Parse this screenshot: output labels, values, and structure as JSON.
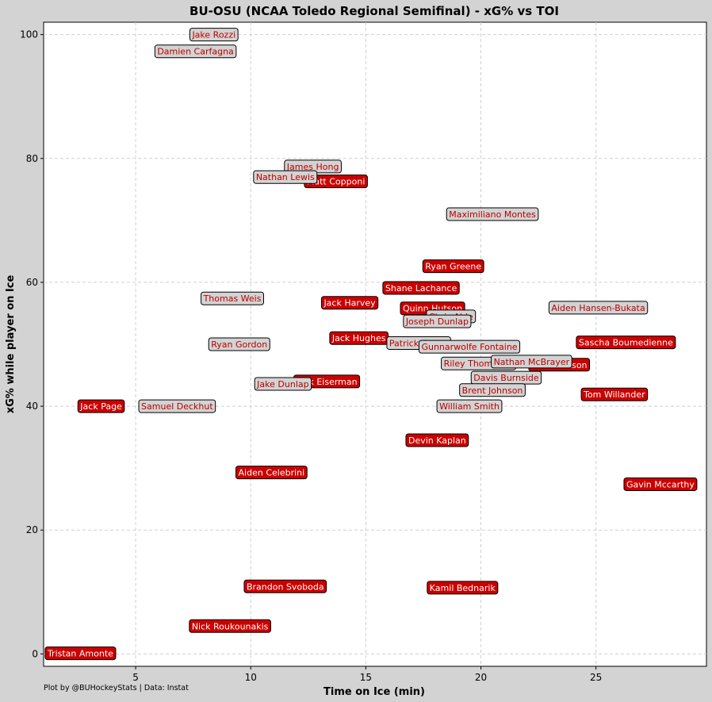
{
  "chart_data": {
    "type": "scatter",
    "title": "BU-OSU (NCAA Toledo Regional Semifinal) - xG% vs TOI",
    "xlabel": "Time on Ice (min)",
    "ylabel": "xG% while player on Ice",
    "xlim": [
      1.0,
      29.8
    ],
    "ylim": [
      -2.0,
      102.0
    ],
    "xticks": [
      5,
      10,
      15,
      20,
      25
    ],
    "yticks": [
      0,
      20,
      40,
      60,
      80,
      100
    ],
    "grid": true,
    "credit": "Plot by @BUHockeyStats | Data: Instat",
    "colors": {
      "BU": {
        "fill": "#cc0000",
        "text": "#ffffff"
      },
      "OSU": {
        "fill": "#d3d3d3",
        "text": "#bb0000"
      }
    },
    "points": [
      {
        "name": "Jake Rozzi",
        "team": "OSU",
        "x": 8.4,
        "y": 100.0
      },
      {
        "name": "Damien Carfagna",
        "team": "OSU",
        "x": 7.6,
        "y": 97.3
      },
      {
        "name": "James Hong",
        "team": "OSU",
        "x": 12.7,
        "y": 78.7
      },
      {
        "name": "Matt Copponi",
        "team": "BU",
        "x": 13.7,
        "y": 76.3
      },
      {
        "name": "Nathan Lewis",
        "team": "OSU",
        "x": 11.5,
        "y": 77.0
      },
      {
        "name": "Maximiliano Montes",
        "team": "OSU",
        "x": 20.5,
        "y": 71.0
      },
      {
        "name": "Ryan Greene",
        "team": "BU",
        "x": 18.8,
        "y": 62.6
      },
      {
        "name": "Shane Lachance",
        "team": "BU",
        "x": 17.4,
        "y": 59.1
      },
      {
        "name": "Thomas Weis",
        "team": "OSU",
        "x": 9.2,
        "y": 57.4
      },
      {
        "name": "Jack Harvey",
        "team": "BU",
        "x": 14.3,
        "y": 56.7
      },
      {
        "name": "Quinn Hutson",
        "team": "BU",
        "x": 17.9,
        "y": 55.8
      },
      {
        "name": "Aiden Hansen-Bukata",
        "team": "OSU",
        "x": 25.1,
        "y": 55.9
      },
      {
        "name": "Chris Able",
        "team": "OSU",
        "x": 18.7,
        "y": 54.5
      },
      {
        "name": "Joseph Dunlap",
        "team": "OSU",
        "x": 18.1,
        "y": 53.7
      },
      {
        "name": "Jack Hughes",
        "team": "BU",
        "x": 14.7,
        "y": 51.0
      },
      {
        "name": "Patrick Guzzo",
        "team": "OSU",
        "x": 17.3,
        "y": 50.2
      },
      {
        "name": "Gunnarwolfe Fontaine",
        "team": "OSU",
        "x": 19.5,
        "y": 49.6
      },
      {
        "name": "Sascha Boumedienne",
        "team": "BU",
        "x": 26.3,
        "y": 50.3
      },
      {
        "name": "Ryan Gordon",
        "team": "OSU",
        "x": 9.5,
        "y": 50.0
      },
      {
        "name": "Riley Thompson",
        "team": "OSU",
        "x": 19.9,
        "y": 46.9
      },
      {
        "name": "Cade Hutson",
        "team": "BU",
        "x": 23.4,
        "y": 46.7
      },
      {
        "name": "Nathan McBrayer",
        "team": "OSU",
        "x": 22.2,
        "y": 47.2
      },
      {
        "name": "Davis Burnside",
        "team": "OSU",
        "x": 21.1,
        "y": 44.6
      },
      {
        "name": "Brent Johnson",
        "team": "OSU",
        "x": 20.5,
        "y": 42.6
      },
      {
        "name": "Jack Eiserman",
        "team": "BU",
        "x": 13.3,
        "y": 44.0
      },
      {
        "name": "Jake Dunlap",
        "team": "OSU",
        "x": 11.4,
        "y": 43.6
      },
      {
        "name": "Tom Willander",
        "team": "BU",
        "x": 25.8,
        "y": 41.9
      },
      {
        "name": "William Smith",
        "team": "OSU",
        "x": 19.5,
        "y": 40.0
      },
      {
        "name": "Jack Page",
        "team": "BU",
        "x": 3.5,
        "y": 40.0
      },
      {
        "name": "Samuel Deckhut",
        "team": "OSU",
        "x": 6.8,
        "y": 40.0
      },
      {
        "name": "Devin Kaplan",
        "team": "BU",
        "x": 18.1,
        "y": 34.5
      },
      {
        "name": "Aiden Celebrini",
        "team": "BU",
        "x": 10.9,
        "y": 29.3
      },
      {
        "name": "Gavin Mccarthy",
        "team": "BU",
        "x": 27.8,
        "y": 27.4
      },
      {
        "name": "Brandon Svoboda",
        "team": "BU",
        "x": 11.5,
        "y": 10.9
      },
      {
        "name": "Kamil Bednarik",
        "team": "BU",
        "x": 19.2,
        "y": 10.7
      },
      {
        "name": "Nick Roukounakis",
        "team": "BU",
        "x": 9.1,
        "y": 4.5
      },
      {
        "name": "Tristan Amonte",
        "team": "BU",
        "x": 2.6,
        "y": 0.1
      }
    ]
  }
}
